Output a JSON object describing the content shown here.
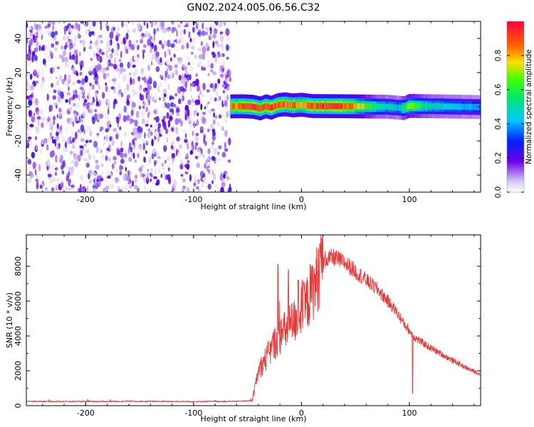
{
  "title": "GN02.2024.005.06.56.C32",
  "chart_data": [
    {
      "type": "heatmap",
      "panel": "spectrogram",
      "xlabel": "Height of straight line (km)",
      "ylabel": "Frequency (Hz)",
      "xlim": [
        -255,
        166
      ],
      "ylim": [
        -50,
        50
      ],
      "xticks": [
        -200,
        -100,
        0,
        100
      ],
      "xtick_labels": [
        "-200",
        "-100",
        "0",
        "100"
      ],
      "yticks": [
        -40,
        -20,
        0,
        20,
        40
      ],
      "ytick_labels": [
        "-40",
        "-20",
        "0",
        "20",
        "40"
      ],
      "noise_region_km": [
        -255,
        -66
      ],
      "signal_band": {
        "x_range_km": [
          -66,
          166
        ],
        "center_freq_hz": [
          [
            -66,
            0.2
          ],
          [
            -55,
            0.3
          ],
          [
            -45,
            0.0
          ],
          [
            -38,
            -1.0
          ],
          [
            -33,
            0.3
          ],
          [
            -28,
            -0.6
          ],
          [
            -22,
            1.0
          ],
          [
            -15,
            1.4
          ],
          [
            -8,
            0.8
          ],
          [
            0,
            1.2
          ],
          [
            10,
            0.4
          ],
          [
            40,
            0.3
          ],
          [
            80,
            0.0
          ],
          [
            95,
            -0.8
          ],
          [
            100,
            0.5
          ],
          [
            130,
            0.2
          ],
          [
            166,
            -0.2
          ]
        ],
        "peak_amplitude": [
          [
            -66,
            0.85
          ],
          [
            -40,
            0.95
          ],
          [
            -20,
            0.9
          ],
          [
            0,
            0.85
          ],
          [
            20,
            0.95
          ],
          [
            45,
            0.9
          ],
          [
            70,
            0.55
          ],
          [
            90,
            0.45
          ],
          [
            100,
            0.7
          ],
          [
            120,
            0.5
          ],
          [
            166,
            0.4
          ]
        ]
      },
      "colorbar": {
        "label": "Normalized spectral amplitude",
        "range": [
          0,
          1
        ],
        "ticks": [
          0.0,
          0.2,
          0.4,
          0.6,
          0.8
        ],
        "tick_labels": [
          "0.0",
          "0.2",
          "0.4",
          "0.6",
          "0.8"
        ],
        "stops": [
          [
            0.0,
            "#ffffff"
          ],
          [
            0.06,
            "#d9ccf5"
          ],
          [
            0.18,
            "#6a00e8"
          ],
          [
            0.3,
            "#0022ff"
          ],
          [
            0.42,
            "#00c8ff"
          ],
          [
            0.55,
            "#00e870"
          ],
          [
            0.66,
            "#40ff00"
          ],
          [
            0.76,
            "#ffe000"
          ],
          [
            0.86,
            "#ff6000"
          ],
          [
            1.0,
            "#ff0040"
          ]
        ]
      }
    },
    {
      "type": "line",
      "panel": "snr",
      "xlabel": "Height of straight line (km)",
      "ylabel": "SNR (10 * v/v)",
      "xlim": [
        -255,
        166
      ],
      "ylim": [
        0,
        9800
      ],
      "xticks": [
        -200,
        -100,
        0,
        100
      ],
      "xtick_labels": [
        "-200",
        "-100",
        "0",
        "100"
      ],
      "yticks": [
        0,
        2000,
        4000,
        6000,
        8000
      ],
      "ytick_labels": [
        "0",
        "2000",
        "4000",
        "6000",
        "8000"
      ],
      "color": "#ee3333",
      "series": [
        {
          "name": "SNR",
          "points": [
            [
              -255,
              250
            ],
            [
              -200,
              240
            ],
            [
              -150,
              250
            ],
            [
              -100,
              240
            ],
            [
              -60,
              250
            ],
            [
              -46,
              280
            ],
            [
              -44,
              700
            ],
            [
              -42,
              1500
            ],
            [
              -38,
              2200
            ],
            [
              -30,
              3000
            ],
            [
              -25,
              3600
            ],
            [
              -15,
              4300
            ],
            [
              -5,
              5000
            ],
            [
              5,
              5900
            ],
            [
              12,
              6900
            ],
            [
              18,
              7900
            ],
            [
              22,
              8400
            ],
            [
              30,
              8500
            ],
            [
              40,
              8200
            ],
            [
              50,
              7700
            ],
            [
              60,
              7200
            ],
            [
              70,
              6700
            ],
            [
              80,
              6000
            ],
            [
              88,
              5400
            ],
            [
              95,
              4700
            ],
            [
              100,
              4300
            ],
            [
              105,
              3900
            ],
            [
              120,
              3300
            ],
            [
              140,
              2600
            ],
            [
              155,
              2100
            ],
            [
              166,
              1800
            ]
          ],
          "spikes": [
            [
              -22,
              8100
            ],
            [
              -12,
              7800
            ],
            [
              -3,
              7200
            ],
            [
              8,
              8100
            ],
            [
              17,
              9300
            ],
            [
              19,
              9600
            ],
            [
              103,
              700
            ]
          ]
        }
      ]
    }
  ]
}
